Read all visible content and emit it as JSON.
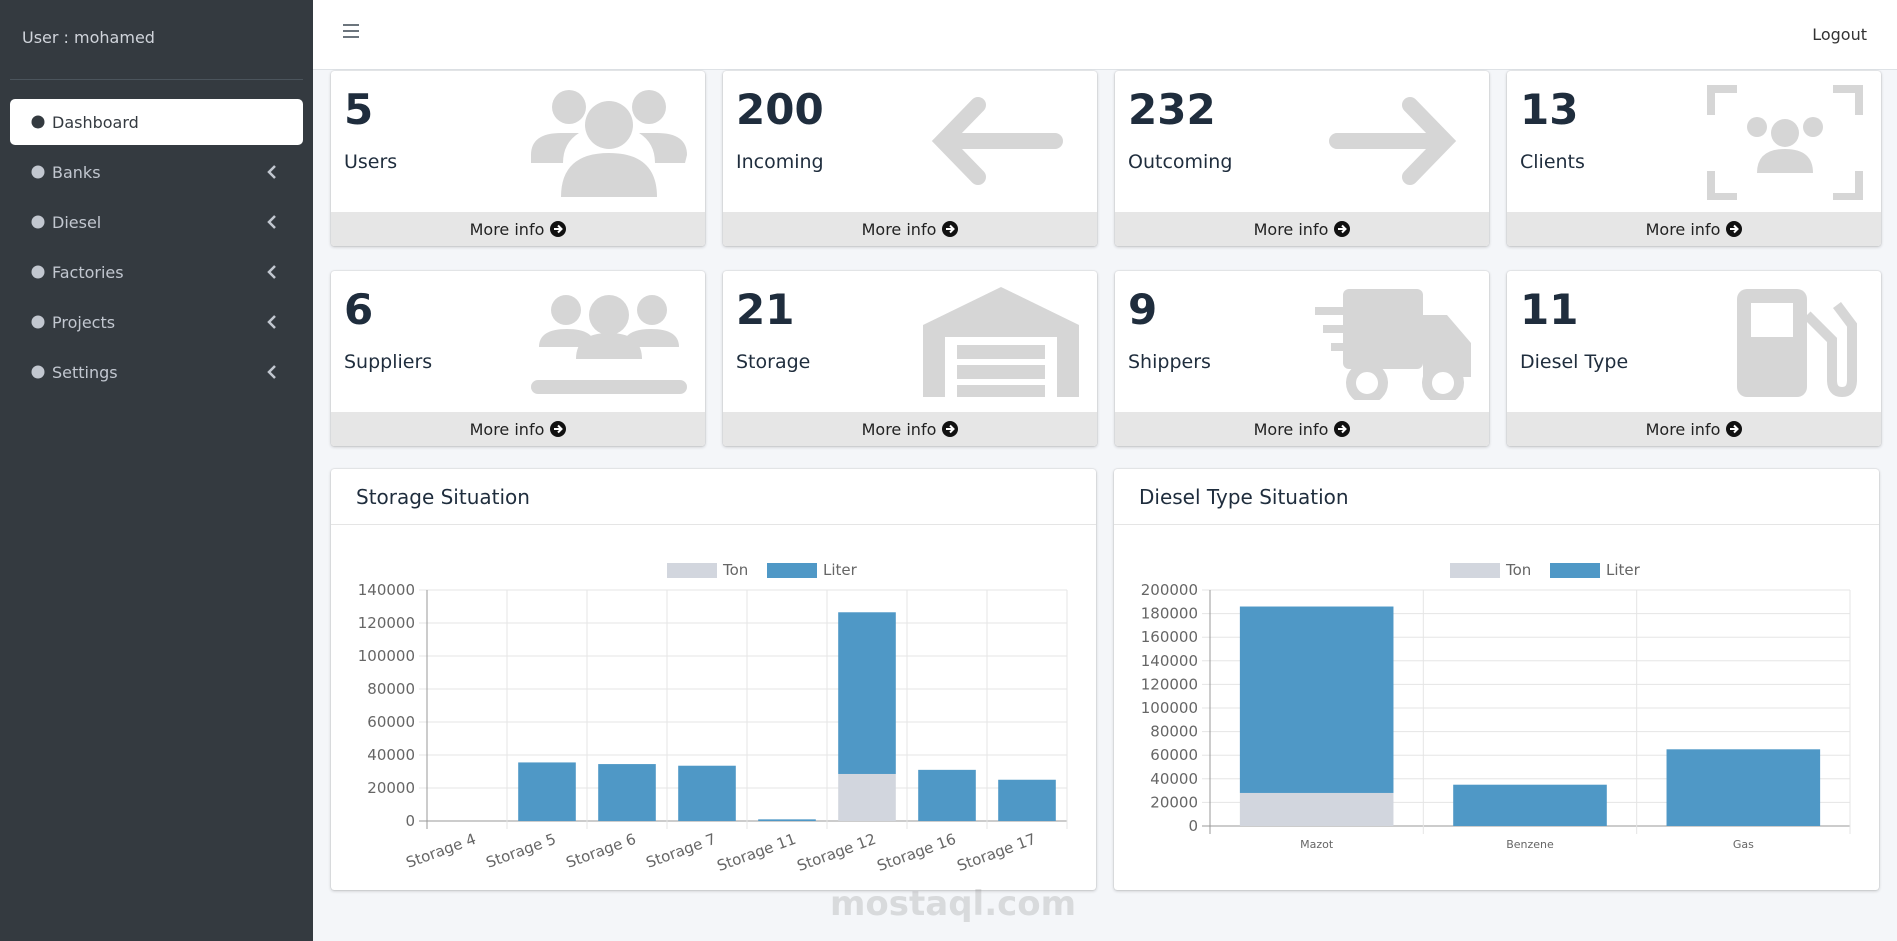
{
  "sidebar": {
    "user": "User : mohamed",
    "menu": [
      "Dashboard",
      "Banks",
      "Diesel",
      "Factories",
      "Projects",
      "Settings"
    ]
  },
  "header": {
    "logout": "Logout"
  },
  "cards": [
    {
      "value": 5,
      "label": "Users",
      "link": "More info"
    },
    {
      "value": 200,
      "label": "Incoming",
      "link": "More info"
    },
    {
      "value": 232,
      "label": "Outcoming",
      "link": "More info"
    },
    {
      "value": 13,
      "label": "Clients",
      "link": "More info"
    },
    {
      "value": 6,
      "label": "Suppliers",
      "link": "More info"
    },
    {
      "value": 21,
      "label": "Storage",
      "link": "More info"
    },
    {
      "value": 9,
      "label": "Shippers",
      "link": "More info"
    },
    {
      "value": 11,
      "label": "Diesel Type",
      "link": "More info"
    }
  ],
  "chart_data": [
    {
      "type": "bar",
      "stacked": true,
      "title": "Storage Situation",
      "categories": [
        "Storage 4",
        "Storage 5",
        "Storage 6",
        "Storage 7",
        "Storage 11",
        "Storage 12",
        "Storage 16",
        "Storage 17"
      ],
      "series": [
        {
          "name": "Ton",
          "color": "#d2d6de",
          "values": [
            0,
            0,
            0,
            0,
            0,
            28500,
            0,
            0
          ]
        },
        {
          "name": "Liter",
          "color": "#4f98c6",
          "values": [
            0,
            35500,
            34500,
            33500,
            1000,
            98000,
            31000,
            25000
          ]
        }
      ],
      "ylim": [
        0,
        140000
      ],
      "yticks": [
        0,
        20000,
        40000,
        60000,
        80000,
        100000,
        120000,
        140000
      ],
      "grid": true,
      "legend": "top"
    },
    {
      "type": "bar",
      "stacked": true,
      "title": "Diesel Type Situation",
      "categories": [
        "Mazot",
        "Benzene",
        "Gas"
      ],
      "series": [
        {
          "name": "Ton",
          "color": "#d2d6de",
          "values": [
            28000,
            0,
            0
          ]
        },
        {
          "name": "Liter",
          "color": "#4f98c6",
          "values": [
            158000,
            35000,
            65000
          ]
        }
      ],
      "ylim": [
        0,
        200000
      ],
      "yticks": [
        0,
        20000,
        40000,
        60000,
        80000,
        100000,
        120000,
        140000,
        160000,
        180000,
        200000
      ],
      "grid": true,
      "legend": "top"
    }
  ],
  "watermark": "mostaql.com"
}
